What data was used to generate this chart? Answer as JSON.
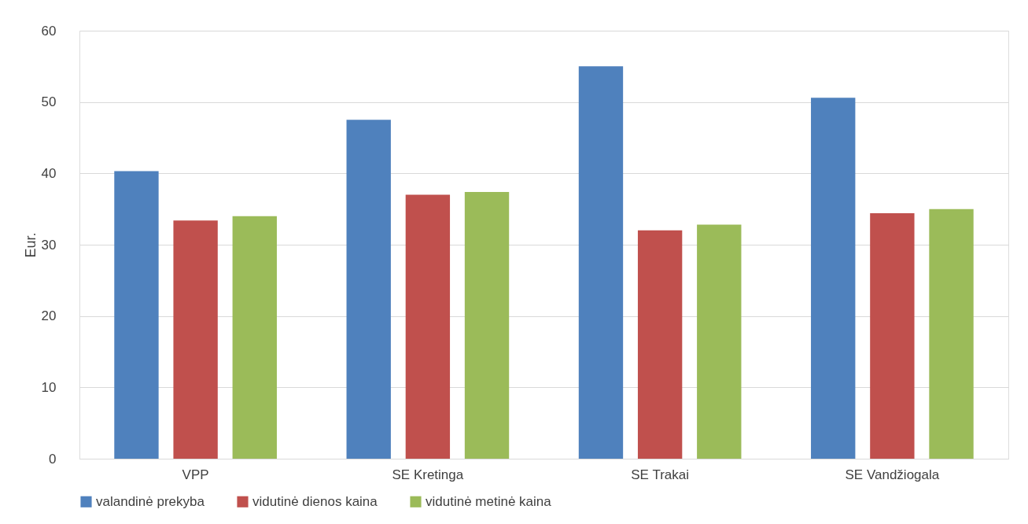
{
  "chart_data": {
    "type": "bar",
    "ylabel": "Eur.",
    "categories": [
      "VPP",
      "SE Kretinga",
      "SE Trakai",
      "SE Vandžiogala"
    ],
    "series": [
      {
        "name": "valandinė prekyba",
        "color": "#4f81bd",
        "values": [
          40.3,
          47.5,
          55.0,
          50.6
        ]
      },
      {
        "name": "vidutinė dienos kaina",
        "color": "#c0504d",
        "values": [
          33.4,
          37.0,
          32.0,
          34.4
        ]
      },
      {
        "name": "vidutinė metinė kaina",
        "color": "#9bbb59",
        "values": [
          34.0,
          37.4,
          32.8,
          35.0
        ]
      }
    ],
    "ylim": [
      0,
      60
    ],
    "yticks": [
      0,
      10,
      20,
      30,
      40,
      50,
      60
    ],
    "grid": "y",
    "legend": "bottom"
  }
}
